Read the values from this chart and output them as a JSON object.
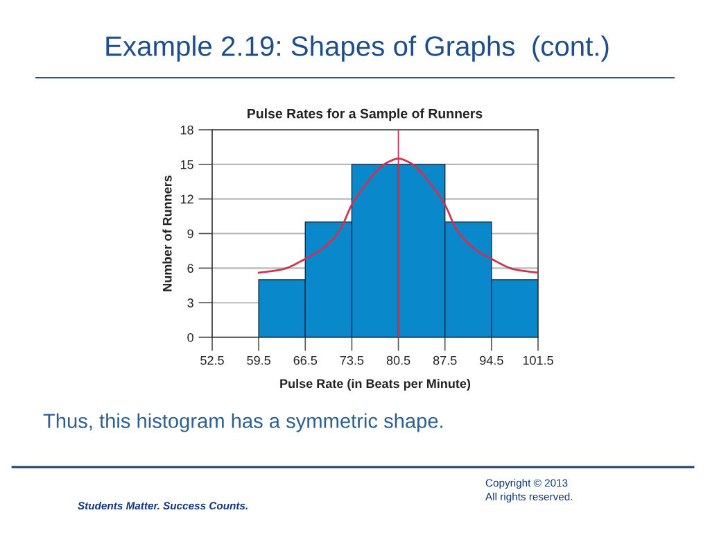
{
  "chart_data": {
    "type": "histogram",
    "title": "Example 2.19: Shapes of Graphs  (cont.)",
    "subtitle": "Pulse Rates for a Sample of Runners",
    "xlabel": "Pulse Rate (in Beats per Minute)",
    "ylabel": "Number of Runners",
    "bins": [
      59.5,
      66.5,
      73.5,
      80.5,
      87.5,
      94.5,
      101.5
    ],
    "values": [
      5,
      10,
      15,
      15,
      10,
      5
    ],
    "color": "#0a88cc",
    "series": [
      {
        "type": "line",
        "color": "#cc3350",
        "x": [
          59.5,
          63.1,
          66.5,
          68.35,
          70.1,
          71.8,
          73.5,
          75.4,
          77.2,
          78.95,
          80.5,
          82.05,
          83.8,
          85.6,
          87.5,
          89.2,
          90.9,
          92.65,
          94.5,
          97.9,
          101.5
        ],
        "values": [
          5.6,
          5.9,
          6.8,
          7.4,
          8.2,
          9.4,
          11.5,
          13.1,
          14.4,
          15.2,
          15.5,
          15.2,
          14.4,
          13.1,
          11.5,
          9.4,
          8.2,
          7.4,
          6.8,
          5.9,
          5.6
        ]
      }
    ],
    "xlim": [
      52.5,
      101.5
    ],
    "xticks": [
      52.5,
      59.5,
      66.5,
      73.5,
      80.5,
      87.5,
      94.5,
      101.5
    ],
    "ylim": [
      0,
      18
    ],
    "yticks": [
      0,
      3,
      6,
      9,
      12,
      15,
      18
    ],
    "grid": "y",
    "ref_lines": [
      {
        "axis": "x",
        "value": 80.5,
        "color": "#cc3350"
      }
    ],
    "annotations": [
      "Thus, this histogram has a symmetric shape.",
      "Students Matter. Success Counts.",
      "Copyright © 2013\nAll rights reserved."
    ]
  }
}
